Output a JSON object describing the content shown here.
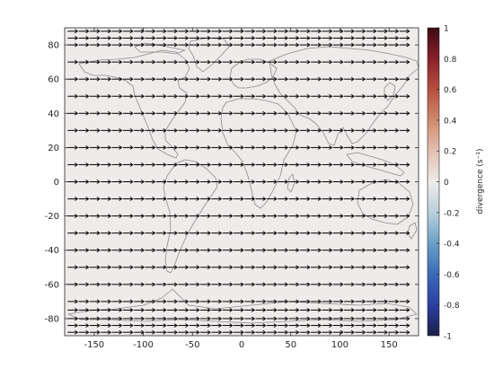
{
  "chart_data": {
    "type": "quiver",
    "plot_kind": "global wind vector field over coastline map with divergence color field",
    "xlim": [
      -180,
      180
    ],
    "ylim": [
      -90,
      90
    ],
    "xticks": [
      -150,
      -100,
      -50,
      0,
      50,
      100,
      150
    ],
    "yticks": [
      -80,
      -60,
      -40,
      -20,
      0,
      20,
      40,
      60,
      80
    ],
    "grid": false,
    "field": {
      "name": "divergence",
      "value_everywhere": 0,
      "color_at_zero": "#eeebea"
    },
    "arrow_rows_lat": [
      88,
      84,
      80,
      70,
      60,
      50,
      40,
      30,
      20,
      10,
      0,
      -10,
      -20,
      -30,
      -40,
      -50,
      -60,
      -70,
      -75,
      -80,
      -84,
      -88
    ],
    "arrow_cols_lon_start": -177,
    "arrow_cols_lon_step": 11.25,
    "arrow_cols_count": 32,
    "arrow_direction": "eastward",
    "arrow_color": "#000000",
    "coastline_color": "#8c8c8c",
    "colorbar": {
      "label": "divergence (s⁻¹)",
      "min": -1,
      "max": 1,
      "ticks": [
        "1",
        "0.8",
        "0.6",
        "0.4",
        "0.2",
        "0",
        "-0.2",
        "-0.4",
        "-0.6",
        "-0.8",
        "-1"
      ],
      "colormap": [
        "#1b1f4b",
        "#2b3fa0",
        "#3a6ab8",
        "#6aa0c8",
        "#b9d0dc",
        "#eeebea",
        "#e2c0b0",
        "#d08a6c",
        "#b8503d",
        "#8a1f2a",
        "#3d0a14"
      ],
      "placement": "right"
    }
  }
}
